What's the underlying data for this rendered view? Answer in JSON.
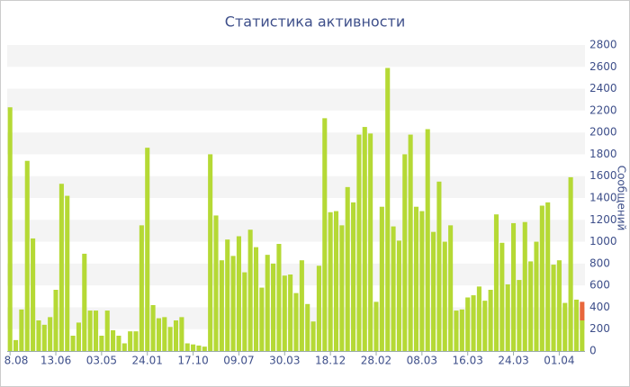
{
  "chart_data": {
    "type": "bar",
    "title": "Статистика активности",
    "y_label": "Сообщений",
    "categories": [
      "8.08",
      null,
      null,
      null,
      null,
      null,
      null,
      null,
      "13.06",
      null,
      null,
      null,
      null,
      null,
      null,
      null,
      "03.05",
      null,
      null,
      null,
      null,
      null,
      null,
      null,
      "24.01",
      null,
      null,
      null,
      null,
      null,
      null,
      null,
      "17.10",
      null,
      null,
      null,
      null,
      null,
      null,
      null,
      "09.07",
      null,
      null,
      null,
      null,
      null,
      null,
      null,
      "30.03",
      null,
      null,
      null,
      null,
      null,
      null,
      null,
      "18.12",
      null,
      null,
      null,
      null,
      null,
      null,
      null,
      "28.02",
      null,
      null,
      null,
      null,
      null,
      null,
      null,
      "08.03",
      null,
      null,
      null,
      null,
      null,
      null,
      null,
      "16.03",
      null,
      null,
      null,
      null,
      null,
      null,
      null,
      "24.03",
      null,
      null,
      null,
      null,
      null,
      null,
      null,
      "01.04",
      null,
      null,
      null,
      null
    ],
    "stacked": true,
    "series": [
      {
        "color": "#b5d935",
        "values": [
          2230,
          100,
          380,
          1740,
          1030,
          280,
          240,
          310,
          560,
          1530,
          1420,
          140,
          260,
          890,
          370,
          370,
          140,
          370,
          190,
          140,
          70,
          180,
          180,
          1150,
          1860,
          420,
          300,
          310,
          220,
          280,
          310,
          70,
          60,
          50,
          40,
          1800,
          1240,
          830,
          1020,
          870,
          1050,
          720,
          1110,
          950,
          580,
          880,
          800,
          980,
          690,
          700,
          530,
          830,
          430,
          270,
          780,
          2130,
          1270,
          1280,
          1150,
          1500,
          1360,
          1980,
          2050,
          1990,
          450,
          1320,
          2590,
          1140,
          1010,
          1800,
          1980,
          1320,
          1280,
          2030,
          1090,
          1550,
          1000,
          1150,
          370,
          380,
          490,
          510,
          590,
          460,
          560,
          1250,
          990,
          610,
          1170,
          650,
          1180,
          820,
          1000,
          1330,
          1360,
          790,
          830,
          440,
          1590,
          470,
          280
        ]
      },
      {
        "color": "#e8673c",
        "values": [
          null,
          null,
          null,
          null,
          null,
          null,
          null,
          null,
          null,
          null,
          null,
          null,
          null,
          null,
          null,
          null,
          null,
          null,
          null,
          null,
          null,
          null,
          null,
          null,
          null,
          null,
          null,
          null,
          null,
          null,
          null,
          null,
          null,
          null,
          null,
          null,
          null,
          null,
          null,
          null,
          null,
          null,
          null,
          null,
          null,
          null,
          null,
          null,
          null,
          null,
          null,
          null,
          null,
          null,
          null,
          null,
          null,
          null,
          null,
          null,
          null,
          null,
          null,
          null,
          null,
          null,
          null,
          null,
          null,
          null,
          null,
          null,
          null,
          null,
          null,
          null,
          null,
          null,
          null,
          null,
          null,
          null,
          null,
          null,
          null,
          null,
          null,
          null,
          null,
          null,
          null,
          null,
          null,
          null,
          null,
          null,
          null,
          null,
          null,
          null,
          170
        ]
      }
    ],
    "ylim": [
      0,
      2800
    ],
    "yticks": [
      0,
      200,
      400,
      600,
      800,
      1000,
      1200,
      1400,
      1600,
      1800,
      2000,
      2200,
      2400,
      2600,
      2800
    ],
    "grid_bands": true
  }
}
